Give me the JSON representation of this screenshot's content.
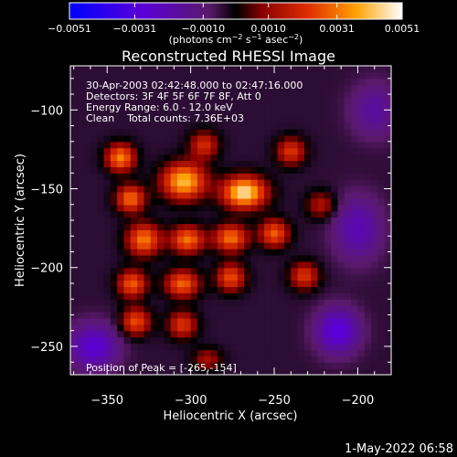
{
  "chart_data": {
    "type": "heatmap",
    "title": "Reconstructed RHESSI Image",
    "xlabel": "Heliocentric X (arcsec)",
    "ylabel": "Heliocentric Y (arcsec)",
    "xlim": [
      -372,
      -180
    ],
    "ylim": [
      -268,
      -72
    ],
    "x_ticks": [
      -350,
      -300,
      -250,
      -200
    ],
    "x_tick_labels": [
      "−350",
      "−300",
      "−250",
      "−200"
    ],
    "y_ticks": [
      -100,
      -150,
      -200,
      -250
    ],
    "y_tick_labels": [
      "−100",
      "−150",
      "−200",
      "−250"
    ],
    "colorbar": {
      "range": [
        -0.0051,
        0.0051
      ],
      "ticks": [
        -0.0051,
        -0.0031,
        -0.001,
        0.001,
        0.0031,
        0.0051
      ],
      "tick_labels": [
        "−0.0051",
        "−0.0031",
        "−0.0010",
        "0.0010",
        "0.0031",
        "0.0051"
      ],
      "units_main": "(photons cm",
      "units_exp1": "−2",
      "units_mid": " s",
      "units_exp2": "−1",
      "units_end": " asec",
      "units_exp3": "−2",
      "units_close": ")"
    },
    "annotations": {
      "time_range": "30-Apr-2003 02:42:48.000 to 02:47:16.000",
      "detectors": "Detectors: 3F 4F 5F 6F 7F 8F, Att 0",
      "energy": "Energy Range: 6.0 - 12.0 keV",
      "clean": "Clean    Total counts: 7.36E+03",
      "peak": "Position of Peak = [-265,-154]"
    },
    "sources": [
      {
        "x": -268,
        "y": -152,
        "amplitude": 0.0051,
        "sigma_x": 9,
        "sigma_y": 7
      },
      {
        "x": -304,
        "y": -145,
        "amplitude": 0.0045,
        "sigma_x": 9,
        "sigma_y": 8
      },
      {
        "x": -342,
        "y": -130,
        "amplitude": 0.0037,
        "sigma_x": 6,
        "sigma_y": 6
      },
      {
        "x": -336,
        "y": -156,
        "amplitude": 0.0034,
        "sigma_x": 6,
        "sigma_y": 6
      },
      {
        "x": -328,
        "y": -182,
        "amplitude": 0.0036,
        "sigma_x": 7,
        "sigma_y": 7
      },
      {
        "x": -302,
        "y": -182,
        "amplitude": 0.0035,
        "sigma_x": 7,
        "sigma_y": 6
      },
      {
        "x": -276,
        "y": -181,
        "amplitude": 0.0035,
        "sigma_x": 7,
        "sigma_y": 6
      },
      {
        "x": -250,
        "y": -178,
        "amplitude": 0.0032,
        "sigma_x": 6,
        "sigma_y": 6
      },
      {
        "x": -335,
        "y": -210,
        "amplitude": 0.0032,
        "sigma_x": 6,
        "sigma_y": 6
      },
      {
        "x": -305,
        "y": -210,
        "amplitude": 0.0033,
        "sigma_x": 7,
        "sigma_y": 6
      },
      {
        "x": -276,
        "y": -206,
        "amplitude": 0.003,
        "sigma_x": 6,
        "sigma_y": 6
      },
      {
        "x": -333,
        "y": -234,
        "amplitude": 0.003,
        "sigma_x": 6,
        "sigma_y": 6
      },
      {
        "x": -305,
        "y": -236,
        "amplitude": 0.0026,
        "sigma_x": 6,
        "sigma_y": 6
      },
      {
        "x": -232,
        "y": -205,
        "amplitude": 0.0026,
        "sigma_x": 6,
        "sigma_y": 6
      },
      {
        "x": -240,
        "y": -126,
        "amplitude": 0.0026,
        "sigma_x": 6,
        "sigma_y": 6
      },
      {
        "x": -292,
        "y": -122,
        "amplitude": 0.0024,
        "sigma_x": 6,
        "sigma_y": 6
      },
      {
        "x": -222,
        "y": -160,
        "amplitude": 0.0018,
        "sigma_x": 6,
        "sigma_y": 6
      },
      {
        "x": -290,
        "y": -258,
        "amplitude": 0.0016,
        "sigma_x": 6,
        "sigma_y": 5
      },
      {
        "x": -212,
        "y": -240,
        "amplitude": -0.0026,
        "sigma_x": 9,
        "sigma_y": 10
      },
      {
        "x": -358,
        "y": -250,
        "amplitude": -0.0024,
        "sigma_x": 10,
        "sigma_y": 10
      },
      {
        "x": -200,
        "y": -175,
        "amplitude": -0.0018,
        "sigma_x": 10,
        "sigma_y": 14
      },
      {
        "x": -190,
        "y": -100,
        "amplitude": -0.0014,
        "sigma_x": 10,
        "sigma_y": 12
      }
    ]
  },
  "timestamp": "1-May-2022 06:58",
  "colors": {
    "background": "#000000",
    "text": "#ffffff"
  }
}
